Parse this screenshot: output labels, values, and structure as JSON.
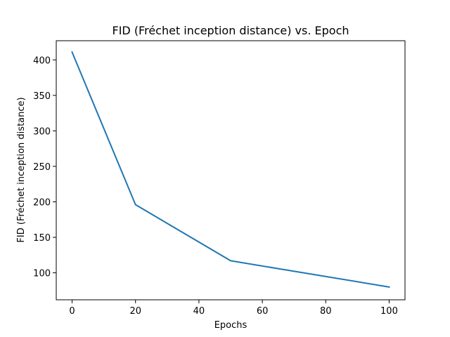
{
  "chart_data": {
    "type": "line",
    "title": "FID (Fréchet inception distance) vs. Epoch",
    "xlabel": "Epochs",
    "ylabel": "FID (Fréchet inception distance)",
    "xlim": [
      -5,
      105
    ],
    "ylim": [
      62,
      427
    ],
    "x_ticks": [
      0,
      20,
      40,
      60,
      80,
      100
    ],
    "y_ticks": [
      100,
      150,
      200,
      250,
      300,
      350,
      400
    ],
    "grid": false,
    "legend": "none",
    "series": [
      {
        "color": "#1f77b4",
        "x": [
          0,
          20,
          50,
          100
        ],
        "y": [
          411,
          196,
          117,
          80
        ]
      }
    ]
  }
}
